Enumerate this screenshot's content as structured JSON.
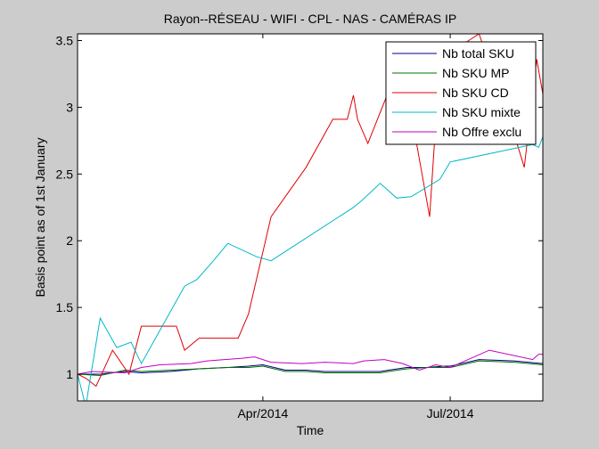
{
  "chart_data": {
    "type": "line",
    "title": "Rayon--RÉSEAU - WIFI - CPL - NAS - CAMÉRAS IP",
    "xlabel": "Time",
    "ylabel": "Basis point as of 1st January",
    "x_range": [
      "2014-01-01",
      "2014-08-15"
    ],
    "ylim": [
      0.8,
      3.55
    ],
    "x_ticks": [
      {
        "date": "2014-04-01",
        "label": "Apr/2014"
      },
      {
        "date": "2014-07-01",
        "label": "Jul/2014"
      }
    ],
    "y_ticks": [
      1,
      1.5,
      2,
      2.5,
      3,
      3.5
    ],
    "y_tick_labels": [
      "1",
      "1.5",
      "2",
      "2.5",
      "3",
      "3.5"
    ],
    "grid": false,
    "legend_position": "top-right",
    "series": [
      {
        "name": "Nb total SKU",
        "color": "#000080",
        "points": [
          [
            "2014-01-01",
            1.0
          ],
          [
            "2014-01-12",
            1.0
          ],
          [
            "2014-01-24",
            1.02
          ],
          [
            "2014-02-01",
            1.01
          ],
          [
            "2014-02-15",
            1.02
          ],
          [
            "2014-03-01",
            1.04
          ],
          [
            "2014-03-15",
            1.05
          ],
          [
            "2014-03-25",
            1.06
          ],
          [
            "2014-04-01",
            1.07
          ],
          [
            "2014-04-12",
            1.03
          ],
          [
            "2014-04-22",
            1.03
          ],
          [
            "2014-05-01",
            1.02
          ],
          [
            "2014-05-15",
            1.02
          ],
          [
            "2014-05-28",
            1.02
          ],
          [
            "2014-06-01",
            1.03
          ],
          [
            "2014-06-10",
            1.05
          ],
          [
            "2014-06-20",
            1.05
          ],
          [
            "2014-06-28",
            1.06
          ],
          [
            "2014-07-01",
            1.06
          ],
          [
            "2014-07-15",
            1.11
          ],
          [
            "2014-08-01",
            1.1
          ],
          [
            "2014-08-15",
            1.08
          ]
        ]
      },
      {
        "name": "Nb SKU MP",
        "color": "#007000",
        "points": [
          [
            "2014-01-01",
            1.0
          ],
          [
            "2014-01-12",
            0.99
          ],
          [
            "2014-01-24",
            1.03
          ],
          [
            "2014-02-01",
            1.02
          ],
          [
            "2014-02-15",
            1.03
          ],
          [
            "2014-03-01",
            1.04
          ],
          [
            "2014-03-15",
            1.05
          ],
          [
            "2014-03-25",
            1.05
          ],
          [
            "2014-04-01",
            1.06
          ],
          [
            "2014-04-12",
            1.02
          ],
          [
            "2014-04-22",
            1.02
          ],
          [
            "2014-05-01",
            1.01
          ],
          [
            "2014-05-15",
            1.01
          ],
          [
            "2014-05-28",
            1.01
          ],
          [
            "2014-06-01",
            1.02
          ],
          [
            "2014-06-10",
            1.04
          ],
          [
            "2014-06-20",
            1.05
          ],
          [
            "2014-06-28",
            1.05
          ],
          [
            "2014-07-01",
            1.05
          ],
          [
            "2014-07-15",
            1.1
          ],
          [
            "2014-08-01",
            1.09
          ],
          [
            "2014-08-15",
            1.07
          ]
        ]
      },
      {
        "name": "Nb SKU CD",
        "color": "#e00000",
        "points": [
          [
            "2014-01-01",
            1.0
          ],
          [
            "2014-01-05",
            0.97
          ],
          [
            "2014-01-10",
            0.91
          ],
          [
            "2014-01-18",
            1.18
          ],
          [
            "2014-01-26",
            1.0
          ],
          [
            "2014-02-01",
            1.36
          ],
          [
            "2014-02-18",
            1.36
          ],
          [
            "2014-02-22",
            1.18
          ],
          [
            "2014-03-01",
            1.27
          ],
          [
            "2014-03-20",
            1.27
          ],
          [
            "2014-03-25",
            1.45
          ],
          [
            "2014-04-05",
            2.18
          ],
          [
            "2014-04-22",
            2.55
          ],
          [
            "2014-05-05",
            2.91
          ],
          [
            "2014-05-12",
            2.91
          ],
          [
            "2014-05-15",
            3.09
          ],
          [
            "2014-05-17",
            2.91
          ],
          [
            "2014-05-22",
            2.73
          ],
          [
            "2014-06-05",
            3.27
          ],
          [
            "2014-06-10",
            3.1
          ],
          [
            "2014-06-15",
            2.7
          ],
          [
            "2014-06-21",
            2.18
          ],
          [
            "2014-06-26",
            3.36
          ],
          [
            "2014-07-05",
            3.45
          ],
          [
            "2014-07-15",
            3.55
          ],
          [
            "2014-08-01",
            2.8
          ],
          [
            "2014-08-06",
            2.55
          ],
          [
            "2014-08-12",
            3.36
          ],
          [
            "2014-08-15",
            3.1
          ]
        ]
      },
      {
        "name": "Nb SKU mixte",
        "color": "#00b8c8",
        "points": [
          [
            "2014-01-01",
            1.0
          ],
          [
            "2014-01-05",
            0.76
          ],
          [
            "2014-01-12",
            1.42
          ],
          [
            "2014-01-20",
            1.2
          ],
          [
            "2014-01-27",
            1.24
          ],
          [
            "2014-02-01",
            1.08
          ],
          [
            "2014-02-22",
            1.66
          ],
          [
            "2014-02-28",
            1.71
          ],
          [
            "2014-03-08",
            1.85
          ],
          [
            "2014-03-15",
            1.98
          ],
          [
            "2014-03-29",
            1.88
          ],
          [
            "2014-04-05",
            1.85
          ],
          [
            "2014-05-15",
            2.25
          ],
          [
            "2014-05-19",
            2.3
          ],
          [
            "2014-05-28",
            2.43
          ],
          [
            "2014-06-05",
            2.32
          ],
          [
            "2014-06-12",
            2.33
          ],
          [
            "2014-06-26",
            2.46
          ],
          [
            "2014-07-01",
            2.59
          ],
          [
            "2014-08-10",
            2.72
          ],
          [
            "2014-08-13",
            2.7
          ],
          [
            "2014-08-15",
            2.78
          ]
        ]
      },
      {
        "name": "Nb Offre exclu",
        "color": "#c000c0",
        "points": [
          [
            "2014-01-01",
            1.0
          ],
          [
            "2014-01-08",
            1.02
          ],
          [
            "2014-01-24",
            1.01
          ],
          [
            "2014-02-01",
            1.05
          ],
          [
            "2014-02-10",
            1.07
          ],
          [
            "2014-02-25",
            1.08
          ],
          [
            "2014-03-05",
            1.1
          ],
          [
            "2014-03-22",
            1.12
          ],
          [
            "2014-03-28",
            1.13
          ],
          [
            "2014-04-05",
            1.09
          ],
          [
            "2014-04-20",
            1.08
          ],
          [
            "2014-05-01",
            1.09
          ],
          [
            "2014-05-15",
            1.08
          ],
          [
            "2014-05-20",
            1.1
          ],
          [
            "2014-05-30",
            1.11
          ],
          [
            "2014-06-08",
            1.08
          ],
          [
            "2014-06-16",
            1.03
          ],
          [
            "2014-06-24",
            1.07
          ],
          [
            "2014-07-01",
            1.05
          ],
          [
            "2014-07-20",
            1.18
          ],
          [
            "2014-08-10",
            1.11
          ],
          [
            "2014-08-13",
            1.15
          ],
          [
            "2014-08-15",
            1.15
          ]
        ]
      }
    ]
  }
}
